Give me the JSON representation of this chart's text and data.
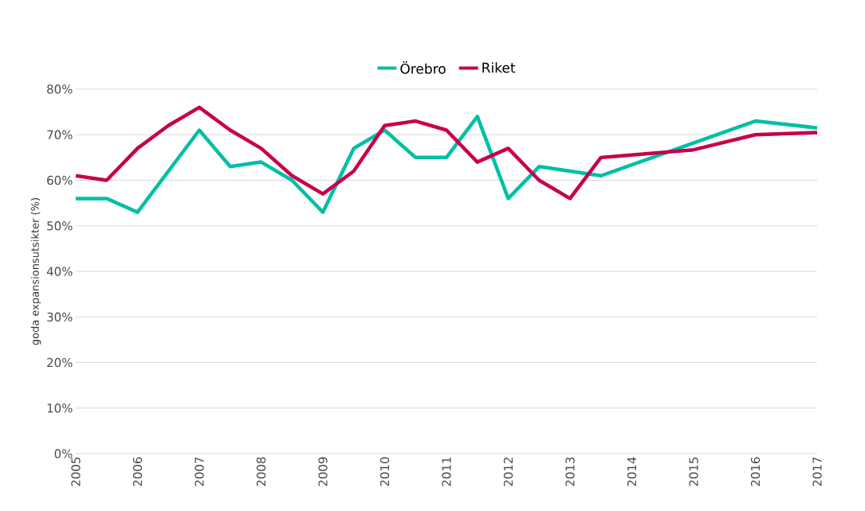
{
  "chart_data": {
    "type": "line",
    "ylabel": "goda expansionsutsikter (%)",
    "legend": "top",
    "grid": "y",
    "line_style": "solid",
    "marker": "none",
    "xlim": [
      2005,
      2017
    ],
    "xticks": [
      2005,
      2006,
      2007,
      2008,
      2009,
      2010,
      2011,
      2012,
      2013,
      2014,
      2015,
      2016,
      2017
    ],
    "ylim": [
      0,
      80
    ],
    "yticks": [
      {
        "value": 0,
        "label": "0%"
      },
      {
        "value": 10,
        "label": "10%"
      },
      {
        "value": 20,
        "label": "20%"
      },
      {
        "value": 30,
        "label": "30%"
      },
      {
        "value": 40,
        "label": "40%"
      },
      {
        "value": 50,
        "label": "50%"
      },
      {
        "value": 60,
        "label": "60%"
      },
      {
        "value": 70,
        "label": "70%"
      },
      {
        "value": 80,
        "label": "80%"
      }
    ],
    "series": [
      {
        "name": "Örebro",
        "color": "#00bfa5",
        "x": [
          2005,
          2005.5,
          2006,
          2007,
          2007.5,
          2008,
          2008.5,
          2009,
          2009.5,
          2010,
          2010.5,
          2011,
          2011.5,
          2012,
          2012.5,
          2013,
          2013.5,
          2016,
          2017
        ],
        "values": [
          56,
          56,
          53,
          71,
          63,
          64,
          60,
          53,
          67,
          71,
          65,
          65,
          74,
          56,
          63,
          62,
          61,
          73,
          71.5
        ]
      },
      {
        "name": "Riket",
        "color": "#c8004b",
        "x": [
          2005,
          2005.5,
          2006,
          2006.5,
          2007,
          2007.5,
          2008,
          2008.5,
          2009,
          2009.5,
          2010,
          2010.5,
          2011,
          2011.5,
          2012,
          2012.5,
          2013,
          2013.5,
          2015,
          2016,
          2017
        ],
        "values": [
          61,
          60,
          67,
          72,
          76,
          71,
          67,
          61,
          57,
          62,
          72,
          73,
          71,
          64,
          67,
          60,
          56,
          65,
          66.7,
          70,
          70.5
        ]
      }
    ]
  }
}
